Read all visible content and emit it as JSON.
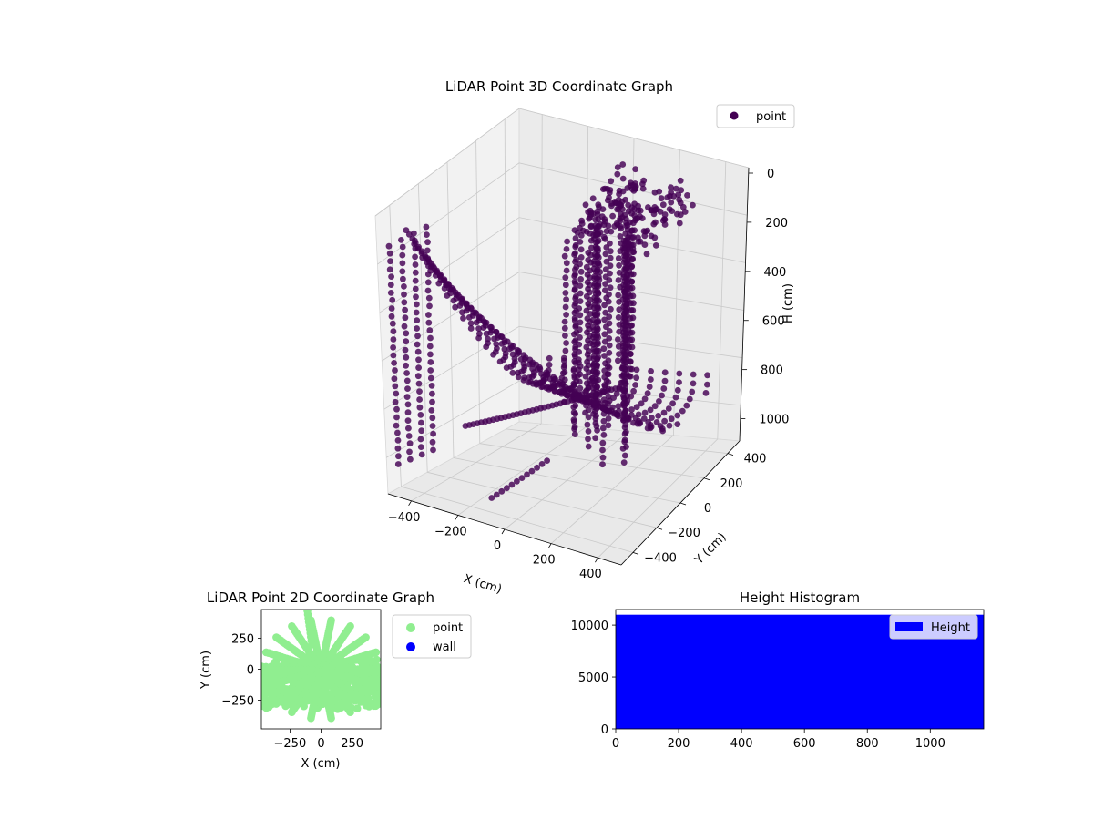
{
  "chart_data": [
    {
      "type": "scatter",
      "projection": "3d",
      "title": "LiDAR Point 3D Coordinate Graph",
      "xlabel": "X (cm)",
      "ylabel": "Y (cm)",
      "zlabel": "H (cm)",
      "xlim": [
        -500,
        500
      ],
      "ylim": [
        -500,
        500
      ],
      "zlim": [
        1150,
        0
      ],
      "xticks": [
        "−400",
        "−200",
        "0",
        "200",
        "400"
      ],
      "yticks": [
        "−400",
        "−200",
        "0",
        "200",
        "400"
      ],
      "zticks": [
        "0",
        "200",
        "400",
        "600",
        "800",
        "1000"
      ],
      "zaxis_inverted": true,
      "grid": true,
      "legend": {
        "placement": "upper-right",
        "entries": [
          {
            "label": "point",
            "color": "#440154"
          }
        ]
      },
      "series": [
        {
          "name": "point",
          "color": "#440154",
          "description_points": "many curved arcs of points sweeping from upper left to lower right; all points drawn with the same dark-purple color"
        }
      ]
    },
    {
      "type": "scatter",
      "title": "LiDAR Point 2D Coordinate Graph",
      "xlabel": "X (cm)",
      "ylabel": "Y (cm)",
      "xlim": [
        -480,
        480
      ],
      "ylim": [
        -480,
        480
      ],
      "xticks": [
        "−250",
        "0",
        "250"
      ],
      "yticks": [
        "−250",
        "0",
        "250"
      ],
      "grid": false,
      "legend": {
        "placement": "outside-right",
        "entries": [
          {
            "label": "point",
            "color": "#90ee90"
          },
          {
            "label": "wall",
            "color": "#0000ff"
          }
        ]
      },
      "series": [
        {
          "name": "point",
          "color": "#90ee90"
        },
        {
          "name": "wall",
          "color": "#0000ff",
          "values": []
        }
      ]
    },
    {
      "type": "bar",
      "subtype": "histogram",
      "title": "Height Histogram",
      "xlabel": "",
      "ylabel": "",
      "xlim": [
        0,
        1170
      ],
      "ylim": [
        0,
        11500
      ],
      "xticks": [
        "0",
        "200",
        "400",
        "600",
        "800",
        "1000"
      ],
      "yticks": [
        "0",
        "5000",
        "10000"
      ],
      "legend": {
        "placement": "upper-right",
        "entries": [
          {
            "label": "Height",
            "color": "#0000ff"
          }
        ]
      },
      "series": [
        {
          "name": "Height",
          "color": "#0000ff",
          "range": [
            0,
            1170
          ],
          "count": 11000
        }
      ]
    }
  ]
}
